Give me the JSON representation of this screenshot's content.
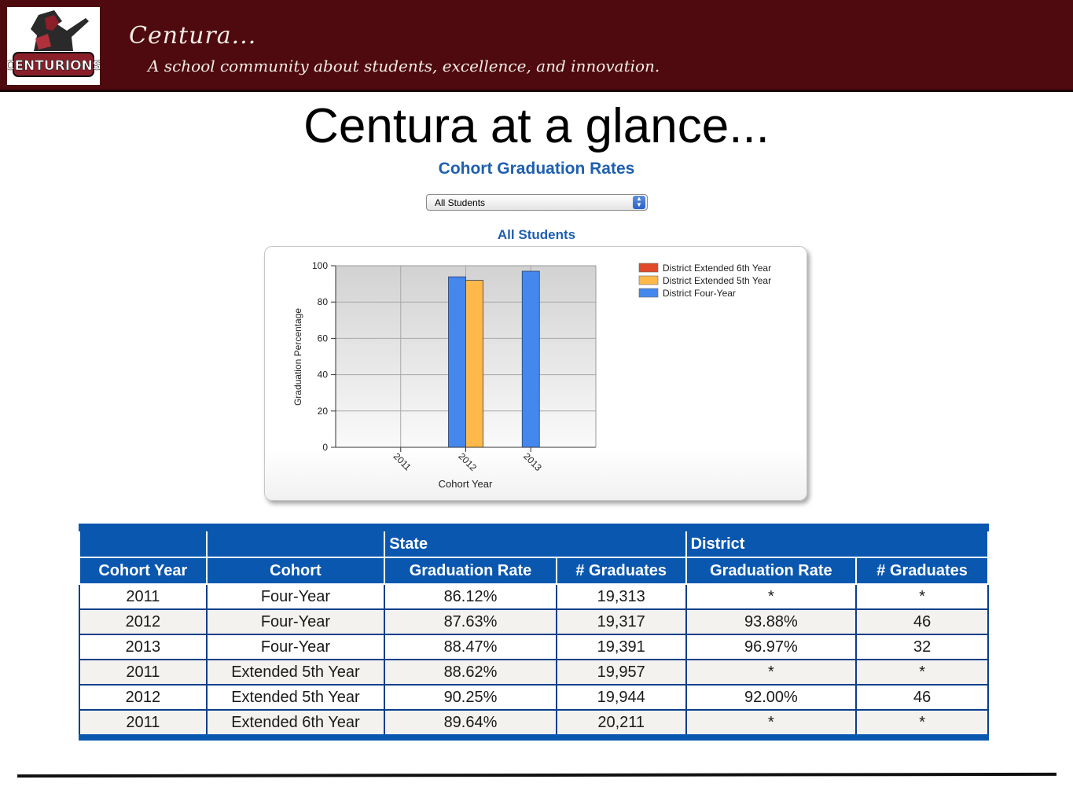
{
  "header": {
    "brand_title": "Centura...",
    "tagline": "A school community about students, excellence, and innovation.",
    "logo_text": "CENTURIONS"
  },
  "page_title": "Centura at a glance...",
  "chart_heading": "Cohort Graduation Rates",
  "filter": {
    "selected": "All Students"
  },
  "chart_subheading": "All Students",
  "colors": {
    "banner": "#4e0a0e",
    "heading_blue": "#1f5fb0",
    "table_blue": "#0a57b0",
    "four_year": "#4488ee",
    "fifth_year": "#ffb84a",
    "sixth_year": "#e04a2a"
  },
  "chart_data": {
    "type": "bar",
    "categories": [
      "2011",
      "2012",
      "2013"
    ],
    "series": [
      {
        "name": "District Four-Year",
        "color": "#4488ee",
        "values": [
          null,
          93.88,
          96.97
        ]
      },
      {
        "name": "District Extended 5th Year",
        "color": "#ffb84a",
        "values": [
          null,
          92.0,
          null
        ]
      },
      {
        "name": "District Extended 6th Year",
        "color": "#e04a2a",
        "values": [
          null,
          null,
          null
        ]
      }
    ],
    "legend_order": [
      "District Extended 6th Year",
      "District Extended 5th Year",
      "District Four-Year"
    ],
    "legend_position": "top-right",
    "xlabel": "Cohort Year",
    "ylabel": "Graduation Percentage",
    "ylim": [
      0,
      100
    ],
    "yticks": [
      0,
      20,
      40,
      60,
      80,
      100
    ],
    "grid": true
  },
  "table": {
    "group_headers": [
      "",
      "",
      "State",
      "District"
    ],
    "columns": [
      "Cohort Year",
      "Cohort",
      "Graduation Rate",
      "# Graduates",
      "Graduation Rate",
      "# Graduates"
    ],
    "rows": [
      [
        "2011",
        "Four-Year",
        "86.12%",
        "19,313",
        "*",
        "*"
      ],
      [
        "2012",
        "Four-Year",
        "87.63%",
        "19,317",
        "93.88%",
        "46"
      ],
      [
        "2013",
        "Four-Year",
        "88.47%",
        "19,391",
        "96.97%",
        "32"
      ],
      [
        "2011",
        "Extended 5th Year",
        "88.62%",
        "19,957",
        "*",
        "*"
      ],
      [
        "2012",
        "Extended 5th Year",
        "90.25%",
        "19,944",
        "92.00%",
        "46"
      ],
      [
        "2011",
        "Extended 6th Year",
        "89.64%",
        "20,211",
        "*",
        "*"
      ]
    ]
  }
}
